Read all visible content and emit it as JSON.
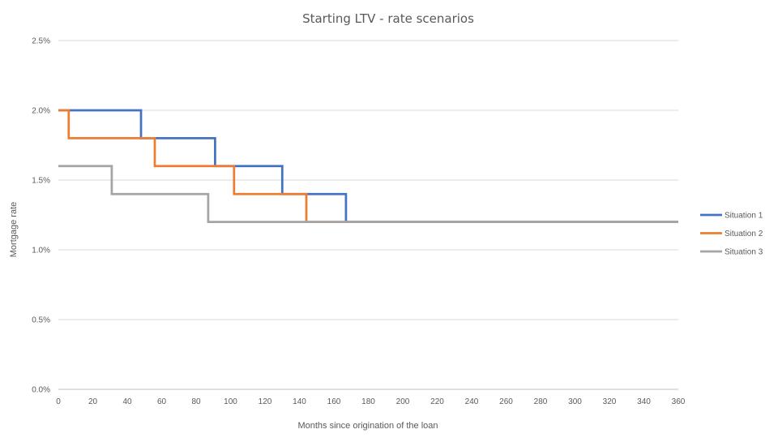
{
  "chart_data": {
    "type": "line",
    "title": "Starting LTV - rate scenarios",
    "xlabel": "Months since origination of the loan",
    "ylabel": "Mortgage rate",
    "xlim": [
      0,
      360
    ],
    "ylim": [
      0,
      0.025
    ],
    "x_ticks": [
      0,
      20,
      40,
      60,
      80,
      100,
      120,
      140,
      160,
      180,
      200,
      220,
      240,
      260,
      280,
      300,
      320,
      340,
      360
    ],
    "y_ticks": [
      0,
      0.005,
      0.01,
      0.015,
      0.02,
      0.025
    ],
    "y_tick_labels": [
      "0.0%",
      "0.5%",
      "1.0%",
      "1.5%",
      "2.0%",
      "2.5%"
    ],
    "grid": "horizontal",
    "legend_position": "right",
    "series": [
      {
        "name": "Situation 1",
        "color": "#4472C4",
        "x": [
          0,
          48,
          48,
          91,
          91,
          130,
          130,
          167,
          167,
          360
        ],
        "y": [
          0.02,
          0.02,
          0.018,
          0.018,
          0.016,
          0.016,
          0.014,
          0.014,
          0.012,
          0.012
        ]
      },
      {
        "name": "Situation 2",
        "color": "#ED7D31",
        "x": [
          0,
          6,
          6,
          56,
          56,
          102,
          102,
          144,
          144,
          360
        ],
        "y": [
          0.02,
          0.02,
          0.018,
          0.018,
          0.016,
          0.016,
          0.014,
          0.014,
          0.012,
          0.012
        ]
      },
      {
        "name": "Situation 3",
        "color": "#A5A5A5",
        "x": [
          0,
          31,
          31,
          87,
          87,
          360
        ],
        "y": [
          0.016,
          0.016,
          0.014,
          0.014,
          0.012,
          0.012
        ]
      }
    ]
  }
}
